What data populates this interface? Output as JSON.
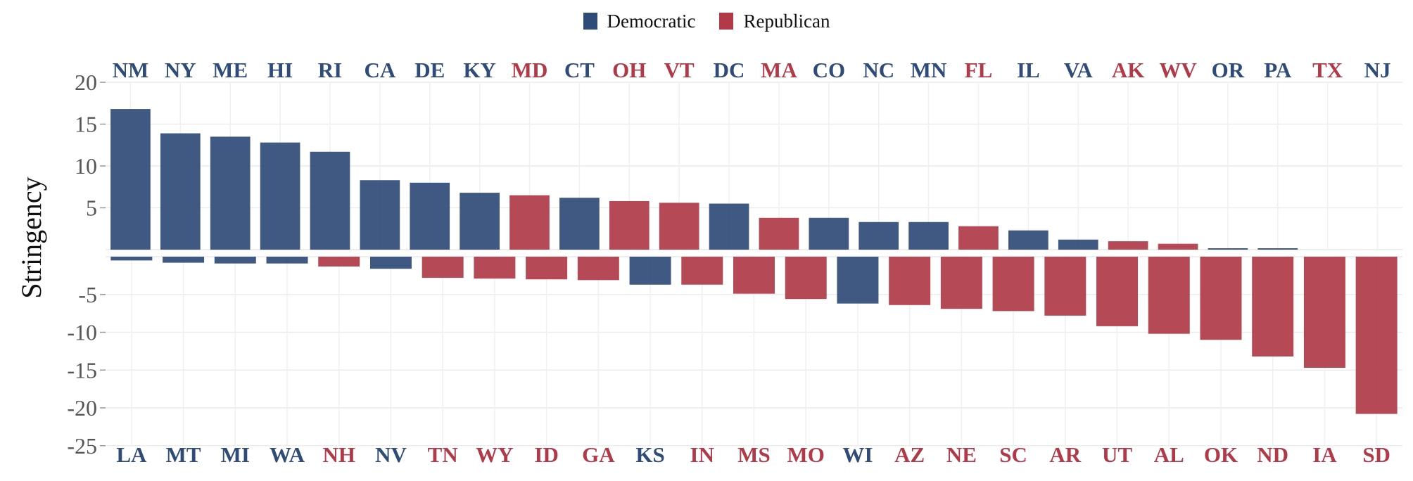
{
  "chart_data": {
    "type": "bar",
    "ylabel": "Stringency",
    "xlabel": "",
    "ylim": [
      -25,
      20
    ],
    "yticks": [
      20,
      15,
      10,
      5,
      -5,
      -10,
      -15,
      -20,
      -25
    ],
    "grid": true,
    "legend_position": "top-center",
    "colors": {
      "Democratic": "#2f4b78",
      "Republican": "#b03a48"
    },
    "legend": [
      "Democratic",
      "Republican"
    ],
    "top_row": [
      {
        "state": "NM",
        "party": "Democratic",
        "value": 16.8
      },
      {
        "state": "NY",
        "party": "Democratic",
        "value": 13.9
      },
      {
        "state": "ME",
        "party": "Democratic",
        "value": 13.5
      },
      {
        "state": "HI",
        "party": "Democratic",
        "value": 12.8
      },
      {
        "state": "RI",
        "party": "Democratic",
        "value": 11.7
      },
      {
        "state": "CA",
        "party": "Democratic",
        "value": 8.3
      },
      {
        "state": "DE",
        "party": "Democratic",
        "value": 8.0
      },
      {
        "state": "KY",
        "party": "Democratic",
        "value": 6.8
      },
      {
        "state": "MD",
        "party": "Republican",
        "value": 6.5
      },
      {
        "state": "CT",
        "party": "Democratic",
        "value": 6.2
      },
      {
        "state": "OH",
        "party": "Republican",
        "value": 5.8
      },
      {
        "state": "VT",
        "party": "Republican",
        "value": 5.6
      },
      {
        "state": "DC",
        "party": "Democratic",
        "value": 5.5
      },
      {
        "state": "MA",
        "party": "Republican",
        "value": 3.8
      },
      {
        "state": "CO",
        "party": "Democratic",
        "value": 3.8
      },
      {
        "state": "NC",
        "party": "Democratic",
        "value": 3.3
      },
      {
        "state": "MN",
        "party": "Democratic",
        "value": 3.3
      },
      {
        "state": "FL",
        "party": "Republican",
        "value": 2.8
      },
      {
        "state": "IL",
        "party": "Democratic",
        "value": 2.3
      },
      {
        "state": "VA",
        "party": "Democratic",
        "value": 1.2
      },
      {
        "state": "AK",
        "party": "Republican",
        "value": 1.0
      },
      {
        "state": "WV",
        "party": "Republican",
        "value": 0.7
      },
      {
        "state": "OR",
        "party": "Democratic",
        "value": 0.1
      },
      {
        "state": "PA",
        "party": "Democratic",
        "value": 0.1
      },
      {
        "state": "TX",
        "party": "Republican",
        "value": 0.0
      },
      {
        "state": "NJ",
        "party": "Democratic",
        "value": 0.0
      }
    ],
    "bottom_row": [
      {
        "state": "LA",
        "party": "Democratic",
        "value": -0.5
      },
      {
        "state": "MT",
        "party": "Democratic",
        "value": -0.8
      },
      {
        "state": "MI",
        "party": "Democratic",
        "value": -0.9
      },
      {
        "state": "WA",
        "party": "Democratic",
        "value": -0.9
      },
      {
        "state": "NH",
        "party": "Republican",
        "value": -1.3
      },
      {
        "state": "NV",
        "party": "Democratic",
        "value": -1.6
      },
      {
        "state": "TN",
        "party": "Republican",
        "value": -2.8
      },
      {
        "state": "WY",
        "party": "Republican",
        "value": -2.9
      },
      {
        "state": "ID",
        "party": "Republican",
        "value": -3.0
      },
      {
        "state": "GA",
        "party": "Republican",
        "value": -3.1
      },
      {
        "state": "KS",
        "party": "Democratic",
        "value": -3.7
      },
      {
        "state": "IN",
        "party": "Republican",
        "value": -3.7
      },
      {
        "state": "MS",
        "party": "Republican",
        "value": -4.9
      },
      {
        "state": "MO",
        "party": "Republican",
        "value": -5.6
      },
      {
        "state": "WI",
        "party": "Democratic",
        "value": -6.2
      },
      {
        "state": "AZ",
        "party": "Republican",
        "value": -6.4
      },
      {
        "state": "NE",
        "party": "Republican",
        "value": -6.9
      },
      {
        "state": "SC",
        "party": "Republican",
        "value": -7.2
      },
      {
        "state": "AR",
        "party": "Republican",
        "value": -7.8
      },
      {
        "state": "UT",
        "party": "Republican",
        "value": -9.2
      },
      {
        "state": "AL",
        "party": "Republican",
        "value": -10.2
      },
      {
        "state": "OK",
        "party": "Republican",
        "value": -11.0
      },
      {
        "state": "ND",
        "party": "Republican",
        "value": -13.2
      },
      {
        "state": "IA",
        "party": "Republican",
        "value": -14.7
      },
      {
        "state": "SD",
        "party": "Republican",
        "value": -20.8
      }
    ]
  }
}
